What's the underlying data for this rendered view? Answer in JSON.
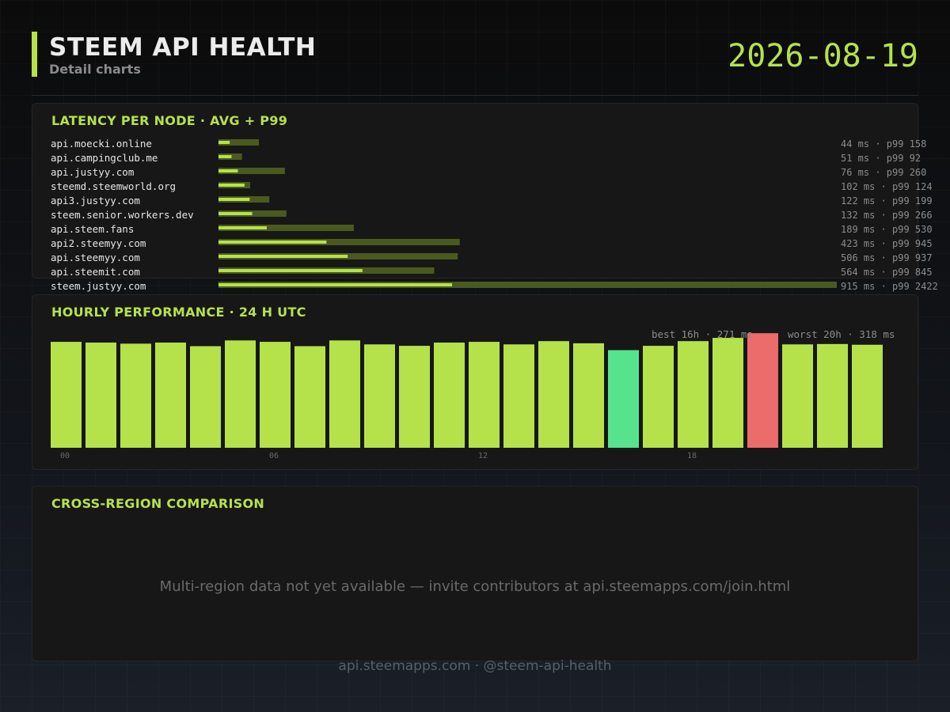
{
  "header": {
    "title": "STEEM API HEALTH",
    "subtitle": "Detail charts",
    "date": "2026-08-19"
  },
  "latency": {
    "title": "LATENCY PER NODE  ·  AVG + P99"
  },
  "hourly": {
    "title": "HOURLY PERFORMANCE  ·  24 H UTC",
    "best_label": "best 16h · 271 ms",
    "worst_label": "worst 20h · 318 ms"
  },
  "cross_region": {
    "title": "CROSS-REGION COMPARISON",
    "message": "Multi-region data not yet available — invite contributors at api.steemapps.com/join.html"
  },
  "footer": {
    "text": "api.steemapps.com  ·  @steem-api-health"
  },
  "colors": {
    "accent": "#b5e24a",
    "p99_bar": "#4a5a1e",
    "best": "#57e38c",
    "worst": "#ec6b6b"
  },
  "chart_data": [
    {
      "type": "bar",
      "orientation": "horizontal",
      "categories": [
        "api.moecki.online",
        "api.campingclub.me",
        "api.justyy.com",
        "steemd.steemworld.org",
        "api3.justyy.com",
        "steem.senior.workers.dev",
        "api.steem.fans",
        "api2.steemyy.com",
        "api.steemyy.com",
        "api.steemit.com",
        "steem.justyy.com"
      ],
      "series": [
        {
          "name": "avg",
          "values": [
            44,
            51,
            76,
            102,
            122,
            132,
            189,
            423,
            506,
            564,
            915
          ]
        },
        {
          "name": "p99",
          "values": [
            158,
            92,
            260,
            124,
            199,
            266,
            530,
            945,
            937,
            845,
            2422
          ]
        }
      ],
      "value_labels": [
        "44 ms  · p99 158",
        "51 ms  · p99 92",
        "76 ms  · p99 260",
        "102 ms  · p99 124",
        "122 ms  · p99 199",
        "132 ms  · p99 266",
        "189 ms  · p99 530",
        "423 ms  · p99 945",
        "506 ms  · p99 937",
        "564 ms  · p99 845",
        "915 ms  · p99 2422"
      ],
      "xlim": [
        0,
        2422
      ]
    },
    {
      "type": "bar",
      "categories": [
        "00",
        "01",
        "02",
        "03",
        "04",
        "05",
        "06",
        "07",
        "08",
        "09",
        "10",
        "11",
        "12",
        "13",
        "14",
        "15",
        "16",
        "17",
        "18",
        "19",
        "20",
        "21",
        "22",
        "23"
      ],
      "tick_labels": [
        "00",
        "06",
        "12",
        "18"
      ],
      "values": [
        294,
        292,
        289,
        292,
        282,
        298,
        294,
        282,
        298,
        287,
        283,
        292,
        294,
        287,
        296,
        290,
        271,
        283,
        296,
        305,
        318,
        287,
        288,
        286
      ],
      "ylim": [
        0,
        325
      ],
      "best_index": 16,
      "worst_index": 20
    }
  ]
}
